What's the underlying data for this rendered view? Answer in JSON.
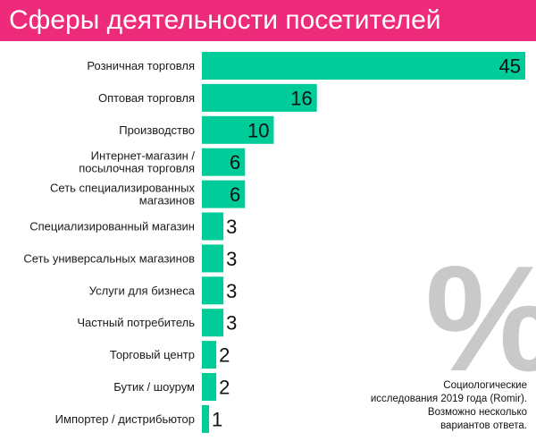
{
  "colors": {
    "header_bg": "#ee2a7b",
    "bar": "#00cc99",
    "percent": "#c9c9c9"
  },
  "header": {
    "title": "Сферы деятельности посетителей"
  },
  "decor": {
    "percent_symbol": "%"
  },
  "footnote": {
    "lines": [
      "Социологические",
      "исследования 2019 года (Romir).",
      "Возможно несколько",
      "вариантов ответа."
    ]
  },
  "chart_data": {
    "type": "bar",
    "orientation": "horizontal",
    "title": "Сферы деятельности посетителей",
    "categories": [
      [
        "Розничная торговля"
      ],
      [
        "Оптовая торговля"
      ],
      [
        "Производство"
      ],
      [
        "Интернет-магазин /",
        "посылочная торговля"
      ],
      [
        "Сеть специализированных",
        "магазинов"
      ],
      [
        "Специализированный магазин"
      ],
      [
        "Сеть универсальных магазинов"
      ],
      [
        "Услуги для бизнеса"
      ],
      [
        "Частный потребитель"
      ],
      [
        "Торговый центр"
      ],
      [
        "Бутик / шоурум"
      ],
      [
        "Импортер / дистрибьютор"
      ]
    ],
    "values": [
      45,
      16,
      10,
      6,
      6,
      3,
      3,
      3,
      3,
      2,
      2,
      1
    ],
    "xlim": [
      0,
      45
    ],
    "grid": false,
    "legend": "none"
  }
}
